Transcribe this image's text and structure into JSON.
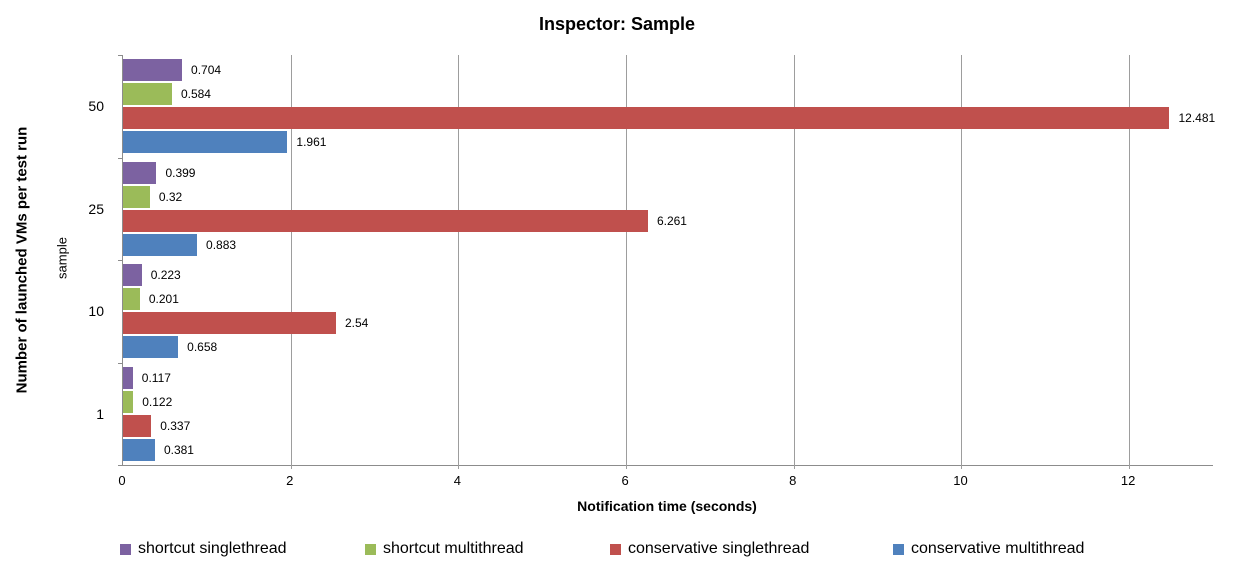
{
  "chart_data": {
    "type": "bar",
    "orientation": "horizontal",
    "title": "Inspector: Sample",
    "xlabel": "Notification time (seconds)",
    "ylabel": "Number of launched VMs per test run",
    "ylabel_inner": "sample",
    "categories": [
      "50",
      "25",
      "10",
      "1"
    ],
    "series": [
      {
        "name": "shortcut singlethread",
        "color": "#7C62A1",
        "values": [
          0.704,
          0.399,
          0.223,
          0.117
        ],
        "labels": [
          "0.704",
          "0.399",
          "0.223",
          "0.117"
        ]
      },
      {
        "name": "shortcut multithread",
        "color": "#9BBB59",
        "values": [
          0.584,
          0.32,
          0.201,
          0.122
        ],
        "labels": [
          "0.584",
          "0.32",
          "0.201",
          "0.122"
        ]
      },
      {
        "name": "conservative singlethread",
        "color": "#C0504D",
        "values": [
          12.481,
          6.261,
          2.54,
          0.337
        ],
        "labels": [
          "12.481",
          "6.261",
          "2.54",
          "0.337"
        ]
      },
      {
        "name": "conservative multithread",
        "color": "#4F81BD",
        "values": [
          1.961,
          0.883,
          0.658,
          0.381
        ],
        "labels": [
          "1.961",
          "0.883",
          "0.658",
          "0.381"
        ]
      }
    ],
    "xlim": [
      0,
      13
    ],
    "xticks": [
      0,
      2,
      4,
      6,
      8,
      10,
      12
    ],
    "xtick_labels": [
      "0",
      "2",
      "4",
      "6",
      "8",
      "10",
      "12"
    ],
    "grid": "vertical-major",
    "legend_position": "bottom",
    "colors": {
      "gridline": "#9D9D9D",
      "axis_line": "#8C8C8C",
      "text": "#000000",
      "background": "#FFFFFF"
    }
  }
}
